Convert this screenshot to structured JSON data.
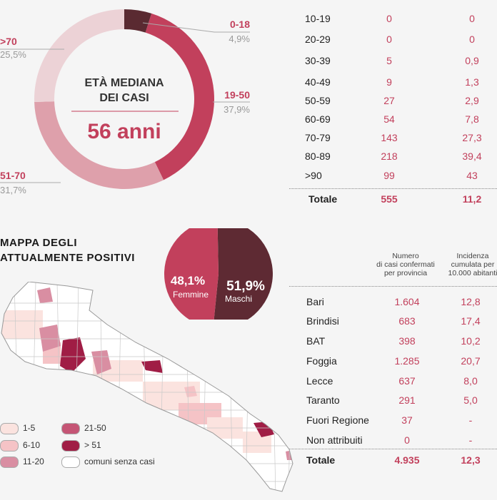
{
  "donut": {
    "center_title_1": "ETÀ MEDIANA",
    "center_title_2": "DEI CASI",
    "center_value": "56 anni",
    "labels": [
      {
        "range": ">70",
        "pct": "25,5%"
      },
      {
        "range": "0-18",
        "pct": "4,9%"
      },
      {
        "range": "19-50",
        "pct": "37,9%"
      },
      {
        "range": "51-70",
        "pct": "31,7%"
      }
    ]
  },
  "age_table": {
    "rows": [
      {
        "range": "10-19",
        "cases": "0",
        "incidence": "0"
      },
      {
        "range": "20-29",
        "cases": "0",
        "incidence": "0"
      },
      {
        "range": "30-39",
        "cases": "5",
        "incidence": "0,9"
      },
      {
        "range": "40-49",
        "cases": "9",
        "incidence": "1,3"
      },
      {
        "range": "50-59",
        "cases": "27",
        "incidence": "2,9"
      },
      {
        "range": "60-69",
        "cases": "54",
        "incidence": "7,8"
      },
      {
        "range": "70-79",
        "cases": "143",
        "incidence": "27,3"
      },
      {
        "range": "80-89",
        "cases": "218",
        "incidence": "39,4"
      },
      {
        "range": ">90",
        "cases": "99",
        "incidence": "43"
      }
    ],
    "total": {
      "label": "Totale",
      "cases": "555",
      "incidence": "11,2"
    }
  },
  "map_title": {
    "line1": "MAPPA DEGLI",
    "line2": "ATTUALMENTE POSITIVI"
  },
  "gender": {
    "female_pct": "48,1%",
    "female_label": "Femmine",
    "male_pct": "51,9%",
    "male_label": "Maschi"
  },
  "province_table": {
    "header_cases": [
      "Numero",
      "di casi confermati",
      "per provincia"
    ],
    "header_incidence": [
      "Incidenza",
      "cumulata per",
      "10.000 abitanti"
    ],
    "rows": [
      {
        "name": "Bari",
        "cases": "1.604",
        "incidence": "12,8"
      },
      {
        "name": "Brindisi",
        "cases": "683",
        "incidence": "17,4"
      },
      {
        "name": "BAT",
        "cases": "398",
        "incidence": "10,2"
      },
      {
        "name": "Foggia",
        "cases": "1.285",
        "incidence": "20,7"
      },
      {
        "name": "Lecce",
        "cases": "637",
        "incidence": "8,0"
      },
      {
        "name": "Taranto",
        "cases": "291",
        "incidence": "5,0"
      },
      {
        "name": "Fuori Regione",
        "cases": "37",
        "incidence": "-"
      },
      {
        "name": "Non attribuiti",
        "cases": "0",
        "incidence": "-"
      }
    ],
    "total": {
      "label": "Totale",
      "cases": "4.935",
      "incidence": "12,3"
    }
  },
  "map_legend": [
    {
      "label": "1-5",
      "color": "#fbe3df"
    },
    {
      "label": "6-10",
      "color": "#f5c3c6"
    },
    {
      "label": "11-20",
      "color": "#d98ea2"
    },
    {
      "label": "21-50",
      "color": "#c55575"
    },
    {
      "label": "> 51",
      "color": "#a01d45"
    },
    {
      "label": "comuni senza casi",
      "color": "#ffffff"
    }
  ],
  "chart_data": [
    {
      "type": "pie",
      "title": "ETÀ MEDIANA DEI CASI",
      "categories": [
        "0-18",
        "19-50",
        "51-70",
        ">70"
      ],
      "values": [
        4.9,
        37.9,
        31.7,
        25.5
      ],
      "colors": [
        "#5a2a31",
        "#c2405c",
        "#dea0ab",
        "#ecd2d6"
      ]
    },
    {
      "type": "pie",
      "categories": [
        "Maschi",
        "Femmine"
      ],
      "values": [
        51.9,
        48.1
      ],
      "colors": [
        "#5e2a33",
        "#c2405c"
      ]
    }
  ]
}
